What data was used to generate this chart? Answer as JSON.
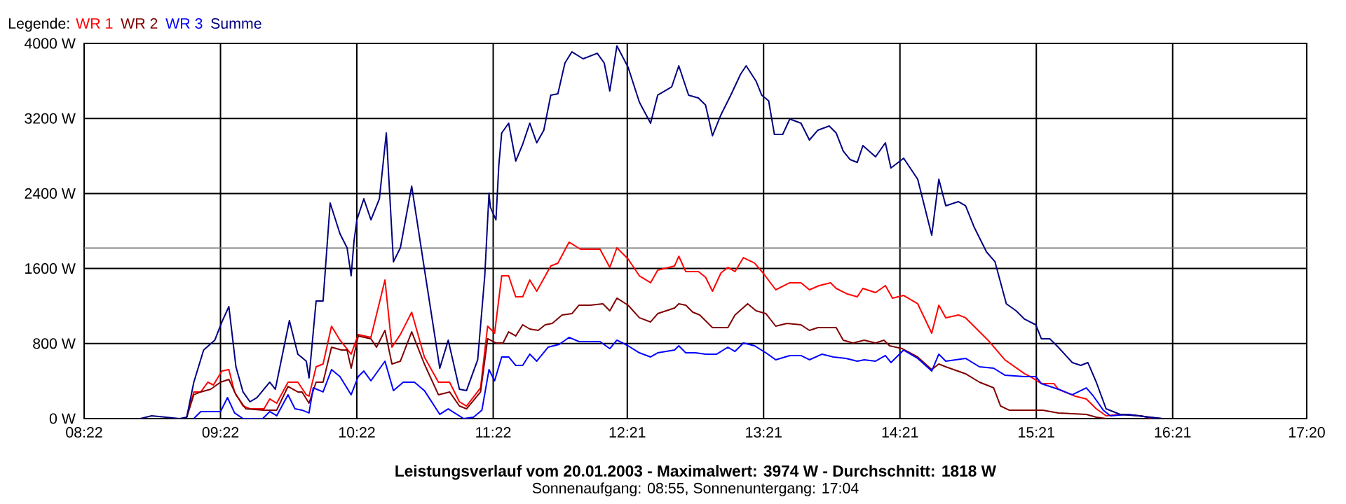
{
  "chart_data": {
    "type": "line",
    "title": "Leistungsverlauf vom 20.01.2003 - Maximalwert: 3974 W - Durchschnitt: 1818 W",
    "subtitle": "Sonnenaufgang: 08:55, Sonnenuntergang: 17:04",
    "legend_title": "Legende:",
    "legend": "top left",
    "grid": true,
    "xlim": [
      8.3667,
      17.3333
    ],
    "ylim": [
      0,
      4000
    ],
    "xticks": [
      {
        "value": 8.3667,
        "label": "08:22"
      },
      {
        "value": 9.3667,
        "label": "09:22"
      },
      {
        "value": 10.3667,
        "label": "10:22"
      },
      {
        "value": 11.3667,
        "label": "11:22"
      },
      {
        "value": 12.35,
        "label": "12:21"
      },
      {
        "value": 13.35,
        "label": "13:21"
      },
      {
        "value": 14.35,
        "label": "14:21"
      },
      {
        "value": 15.35,
        "label": "15:21"
      },
      {
        "value": 16.35,
        "label": "16:21"
      },
      {
        "value": 17.3333,
        "label": "17:20"
      }
    ],
    "yticks": [
      {
        "value": 0,
        "label": "0 W"
      },
      {
        "value": 800,
        "label": "800 W"
      },
      {
        "value": 1600,
        "label": "1600 W"
      },
      {
        "value": 2400,
        "label": "2400 W"
      },
      {
        "value": 3200,
        "label": "3200 W"
      },
      {
        "value": 4000,
        "label": "4000 W"
      }
    ],
    "ref_lines": [
      {
        "axis": "y",
        "value": 1818,
        "color": "#808080"
      }
    ],
    "series": [
      {
        "name": "WR 1",
        "color": "#ff0000",
        "x": [
          9.119,
          9.171,
          9.222,
          9.274,
          9.315,
          9.377,
          9.428,
          9.47,
          9.532,
          9.583,
          9.686,
          9.728,
          9.779,
          9.862,
          9.934,
          9.996,
          10.016,
          10.068,
          10.119,
          10.181,
          10.243,
          10.325,
          10.377,
          10.47,
          10.573,
          10.624,
          10.686,
          10.769,
          10.862,
          10.965,
          11.047,
          11.119,
          11.171,
          11.274,
          11.326,
          11.377,
          11.429,
          11.48,
          11.532,
          11.583,
          11.635,
          11.686,
          11.789,
          11.841,
          11.923,
          12.006,
          12.15,
          12.222,
          12.274,
          12.356,
          12.439,
          12.521,
          12.573,
          12.697,
          12.728,
          12.779,
          12.872,
          12.924,
          12.975,
          13.037,
          13.088,
          13.14,
          13.202,
          13.284,
          13.346,
          13.439,
          13.542,
          13.624,
          13.686,
          13.758,
          13.841,
          13.882,
          13.965,
          14.037,
          14.078,
          14.171,
          14.243,
          14.295,
          14.377,
          14.48,
          14.583,
          14.635,
          14.686,
          14.779,
          14.831,
          14.893,
          14.996,
          15.119,
          15.264,
          15.305,
          15.387,
          15.48,
          15.511,
          15.635,
          15.717,
          15.79,
          15.862,
          15.965,
          16.119,
          16.202
        ],
        "values": [
          15,
          284,
          284,
          388,
          358,
          507,
          522,
          284,
          134,
          104,
          104,
          209,
          164,
          388,
          388,
          254,
          239,
          552,
          582,
          985,
          836,
          687,
          896,
          866,
          1478,
          761,
          896,
          1134,
          657,
          388,
          388,
          179,
          134,
          328,
          985,
          910,
          1522,
          1522,
          1298,
          1298,
          1478,
          1358,
          1627,
          1657,
          1881,
          1806,
          1806,
          1612,
          1821,
          1701,
          1522,
          1448,
          1582,
          1627,
          1731,
          1567,
          1567,
          1507,
          1358,
          1552,
          1612,
          1567,
          1716,
          1657,
          1552,
          1373,
          1448,
          1448,
          1373,
          1418,
          1448,
          1388,
          1328,
          1298,
          1388,
          1343,
          1418,
          1284,
          1313,
          1224,
          910,
          1209,
          1075,
          1104,
          1075,
          985,
          836,
          627,
          478,
          448,
          373,
          373,
          313,
          239,
          209,
          104,
          30,
          45,
          30,
          0
        ]
      },
      {
        "name": "WR 2",
        "color": "#800000",
        "x": [
          9.119,
          9.171,
          9.222,
          9.295,
          9.367,
          9.428,
          9.48,
          9.552,
          9.686,
          9.779,
          9.862,
          9.934,
          9.965,
          10.016,
          10.068,
          10.119,
          10.181,
          10.253,
          10.295,
          10.325,
          10.377,
          10.47,
          10.511,
          10.573,
          10.624,
          10.686,
          10.769,
          10.862,
          10.965,
          11.047,
          11.119,
          11.171,
          11.274,
          11.326,
          11.387,
          11.439,
          11.48,
          11.532,
          11.583,
          11.635,
          11.697,
          11.748,
          11.8,
          11.872,
          11.944,
          11.996,
          12.078,
          12.171,
          12.222,
          12.274,
          12.356,
          12.439,
          12.521,
          12.573,
          12.697,
          12.728,
          12.779,
          12.831,
          12.882,
          12.975,
          13.088,
          13.14,
          13.233,
          13.295,
          13.367,
          13.439,
          13.521,
          13.624,
          13.686,
          13.748,
          13.882,
          13.934,
          14.006,
          14.088,
          14.171,
          14.233,
          14.274,
          14.367,
          14.48,
          14.583,
          14.635,
          14.686,
          14.831,
          14.933,
          15.037,
          15.088,
          15.15,
          15.398,
          15.511,
          15.717,
          15.79,
          15.862
        ],
        "values": [
          15,
          254,
          284,
          313,
          388,
          418,
          254,
          104,
          90,
          90,
          343,
          284,
          284,
          164,
          388,
          388,
          761,
          731,
          731,
          537,
          881,
          851,
          761,
          940,
          582,
          612,
          925,
          582,
          254,
          284,
          134,
          104,
          284,
          851,
          806,
          806,
          925,
          881,
          1000,
          955,
          940,
          1000,
          1015,
          1104,
          1119,
          1209,
          1209,
          1224,
          1149,
          1284,
          1209,
          1075,
          1030,
          1119,
          1179,
          1224,
          1209,
          1134,
          1104,
          970,
          970,
          1104,
          1224,
          1149,
          1119,
          985,
          1015,
          1000,
          940,
          970,
          970,
          836,
          806,
          836,
          806,
          836,
          776,
          746,
          657,
          522,
          582,
          552,
          478,
          388,
          328,
          134,
          90,
          90,
          60,
          45,
          15,
          0
        ]
      },
      {
        "name": "WR 3",
        "color": "#0000ff",
        "x": [
          9.171,
          9.222,
          9.367,
          9.418,
          9.47,
          9.532,
          9.676,
          9.728,
          9.779,
          9.862,
          9.913,
          9.965,
          10.016,
          10.047,
          10.119,
          10.181,
          10.243,
          10.325,
          10.377,
          10.418,
          10.47,
          10.573,
          10.635,
          10.707,
          10.789,
          10.862,
          10.975,
          11.037,
          11.15,
          11.222,
          11.284,
          11.336,
          11.377,
          11.429,
          11.48,
          11.532,
          11.583,
          11.635,
          11.686,
          11.769,
          11.851,
          11.923,
          11.996,
          12.15,
          12.222,
          12.274,
          12.356,
          12.439,
          12.521,
          12.573,
          12.697,
          12.728,
          12.779,
          12.851,
          12.924,
          13.006,
          13.088,
          13.14,
          13.202,
          13.284,
          13.367,
          13.439,
          13.542,
          13.624,
          13.686,
          13.779,
          13.861,
          13.954,
          14.037,
          14.088,
          14.171,
          14.243,
          14.284,
          14.377,
          14.48,
          14.583,
          14.635,
          14.686,
          14.831,
          14.933,
          15.037,
          15.119,
          15.264,
          15.346,
          15.387,
          15.511,
          15.614,
          15.717,
          15.769,
          15.841,
          15.893,
          16.027,
          16.171,
          16.274
        ],
        "values": [
          0,
          75,
          75,
          224,
          60,
          0,
          0,
          75,
          30,
          254,
          104,
          90,
          60,
          328,
          284,
          522,
          448,
          254,
          448,
          507,
          403,
          612,
          299,
          388,
          388,
          299,
          45,
          104,
          0,
          15,
          90,
          522,
          403,
          657,
          657,
          567,
          567,
          687,
          612,
          761,
          791,
          866,
          821,
          821,
          746,
          836,
          776,
          701,
          657,
          701,
          731,
          776,
          701,
          701,
          687,
          687,
          761,
          716,
          806,
          776,
          701,
          627,
          672,
          672,
          627,
          687,
          657,
          642,
          612,
          627,
          612,
          672,
          597,
          731,
          642,
          507,
          687,
          612,
          642,
          552,
          537,
          463,
          448,
          448,
          373,
          313,
          254,
          328,
          239,
          90,
          30,
          45,
          15,
          0
        ]
      },
      {
        "name": "Summe",
        "color": "#000080",
        "x": [
          8.779,
          8.862,
          8.965,
          9.068,
          9.119,
          9.171,
          9.243,
          9.325,
          9.377,
          9.428,
          9.48,
          9.532,
          9.583,
          9.635,
          9.728,
          9.769,
          9.872,
          9.934,
          9.996,
          10.016,
          10.068,
          10.119,
          10.171,
          10.243,
          10.295,
          10.325,
          10.346,
          10.367,
          10.418,
          10.47,
          10.532,
          10.583,
          10.635,
          10.686,
          10.769,
          10.862,
          10.975,
          11.037,
          11.119,
          11.171,
          11.253,
          11.305,
          11.336,
          11.346,
          11.387,
          11.408,
          11.429,
          11.48,
          11.532,
          11.583,
          11.635,
          11.686,
          11.738,
          11.789,
          11.841,
          11.893,
          11.944,
          12.026,
          12.13,
          12.181,
          12.222,
          12.274,
          12.356,
          12.439,
          12.521,
          12.573,
          12.676,
          12.728,
          12.8,
          12.872,
          12.924,
          12.975,
          13.037,
          13.109,
          13.181,
          13.222,
          13.295,
          13.336,
          13.387,
          13.429,
          13.49,
          13.542,
          13.624,
          13.686,
          13.748,
          13.831,
          13.882,
          13.934,
          13.985,
          14.037,
          14.078,
          14.171,
          14.243,
          14.284,
          14.377,
          14.48,
          14.583,
          14.635,
          14.686,
          14.779,
          14.831,
          14.893,
          14.985,
          15.047,
          15.13,
          15.202,
          15.264,
          15.346,
          15.387,
          15.449,
          15.511,
          15.614,
          15.676,
          15.728,
          15.79,
          15.862,
          15.965,
          16.099,
          16.274
        ],
        "values": [
          0,
          30,
          15,
          0,
          15,
          388,
          731,
          836,
          1030,
          1194,
          552,
          284,
          179,
          224,
          388,
          313,
          1045,
          687,
          612,
          433,
          1254,
          1254,
          2298,
          1970,
          1821,
          1522,
          1895,
          2119,
          2343,
          2119,
          2343,
          3045,
          1672,
          1821,
          2478,
          1597,
          537,
          836,
          313,
          299,
          627,
          1522,
          2403,
          2254,
          2119,
          2701,
          3045,
          3149,
          2746,
          2925,
          3149,
          2940,
          3075,
          3448,
          3463,
          3791,
          3910,
          3836,
          3895,
          3791,
          3493,
          3974,
          3746,
          3373,
          3149,
          3448,
          3537,
          3761,
          3448,
          3418,
          3343,
          3015,
          3239,
          3448,
          3672,
          3761,
          3597,
          3448,
          3388,
          3030,
          3030,
          3194,
          3149,
          2970,
          3075,
          3119,
          3045,
          2851,
          2761,
          2731,
          2910,
          2791,
          2940,
          2672,
          2776,
          2552,
          1955,
          2552,
          2269,
          2313,
          2269,
          2045,
          1776,
          1672,
          1224,
          1149,
          1060,
          1000,
          851,
          851,
          761,
          597,
          567,
          597,
          388,
          104,
          45,
          30,
          0
        ]
      }
    ]
  }
}
